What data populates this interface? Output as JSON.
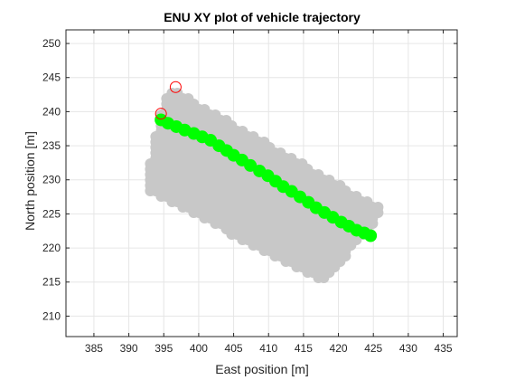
{
  "chart_data": {
    "type": "scatter",
    "title": "ENU XY plot of vehicle trajectory",
    "xlabel": "East position [m]",
    "ylabel": "North position [m]",
    "xlim": [
      381,
      437
    ],
    "ylim": [
      207,
      252
    ],
    "xticks": [
      385,
      390,
      395,
      400,
      405,
      410,
      415,
      420,
      425,
      430,
      435
    ],
    "yticks": [
      210,
      215,
      220,
      225,
      230,
      235,
      240,
      245,
      250
    ],
    "grid": true,
    "colors": {
      "region": "#c8c8c8",
      "trajectory": "#00ff00",
      "marker_edge": "#ff0000",
      "axis": "#262626",
      "grid": "#e6e6e6"
    },
    "series": [
      {
        "role": "region",
        "corners": [
          [
            392.3,
            228.5
          ],
          [
            394.5,
            240.0
          ],
          [
            396.0,
            243.5
          ],
          [
            426.5,
            225.5
          ],
          [
            418.0,
            215.0
          ]
        ]
      },
      {
        "role": "trajectory",
        "x": [
          394.6,
          395.6,
          396.8,
          398.0,
          399.3,
          400.5,
          401.7,
          402.9,
          404.0,
          405.0,
          406.2,
          407.4,
          408.7,
          409.9,
          411.0,
          412.1,
          413.3,
          414.5,
          415.7,
          416.8,
          418.0,
          419.2,
          420.4,
          421.5,
          422.6,
          423.7,
          424.6
        ],
        "y": [
          238.8,
          238.3,
          237.8,
          237.3,
          236.8,
          236.3,
          235.8,
          235.0,
          234.3,
          233.6,
          232.9,
          232.1,
          231.3,
          230.6,
          229.8,
          229.0,
          228.3,
          227.5,
          226.7,
          225.9,
          225.2,
          224.5,
          223.8,
          223.2,
          222.6,
          222.2,
          221.8
        ]
      },
      {
        "role": "markers",
        "x": [
          396.7,
          394.6
        ],
        "y": [
          243.6,
          239.7
        ]
      }
    ]
  }
}
